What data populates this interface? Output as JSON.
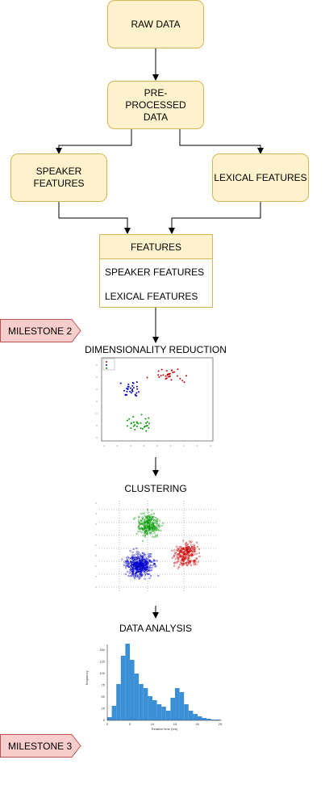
{
  "nodes": {
    "raw_data": "RAW DATA",
    "preprocessed_data": "PRE-PROCESSED DATA",
    "speaker_features": "SPEAKER FEATURES",
    "lexical_features": "LEXICAL FEATURES",
    "features": {
      "title": "FEATURES",
      "items": [
        "SPEAKER FEATURES",
        "LEXICAL FEATURES"
      ]
    }
  },
  "milestones": [
    "MILESTONE 2",
    "MILESTONE 3"
  ],
  "steps": {
    "dimensionality_reduction": "DIMENSIONALITY REDUCTION",
    "clustering": "CLUSTERING",
    "data_analysis": "DATA ANALYSIS"
  },
  "histogram": {
    "ylabel": "frequency",
    "xlabel": "Relative time (hrs)",
    "x_ticks": [
      "0",
      "5",
      "10",
      "15",
      "20",
      "25"
    ],
    "y_ticks": [
      "0",
      "25",
      "50",
      "75",
      "100",
      "125",
      "150"
    ]
  },
  "colors": {
    "fill": "#fff2cc",
    "stroke": "#d6b656",
    "milestone_fill": "#f8cecc",
    "milestone_stroke": "#b85450",
    "cluster_red": "#cc0000",
    "cluster_blue": "#0000cc",
    "cluster_green": "#009900",
    "bars": "#3b8fd4"
  }
}
